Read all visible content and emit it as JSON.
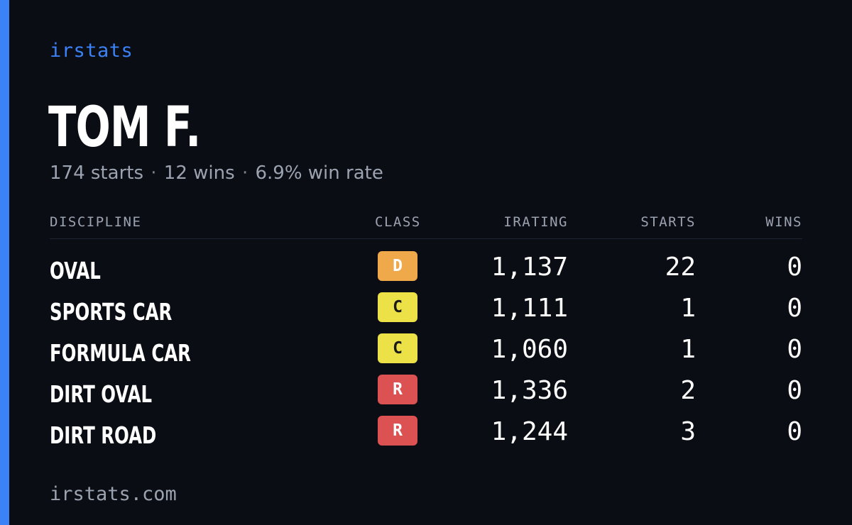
{
  "brand": "irstats",
  "player": {
    "name": "TOM F.",
    "starts_text": "174 starts",
    "wins_text": "12 wins",
    "winrate_text": "6.9% win rate",
    "separator": "·"
  },
  "table": {
    "headers": {
      "discipline": "DISCIPLINE",
      "class": "CLASS",
      "irating": "IRATING",
      "starts": "STARTS",
      "wins": "WINS"
    },
    "rows": [
      {
        "discipline": "OVAL",
        "class": "D",
        "class_color": "#f0a94a",
        "class_text_color": "#ffffff",
        "irating": "1,137",
        "starts": "22",
        "wins": "0"
      },
      {
        "discipline": "SPORTS CAR",
        "class": "C",
        "class_color": "#ece247",
        "class_text_color": "#1a1a1a",
        "irating": "1,111",
        "starts": "1",
        "wins": "0"
      },
      {
        "discipline": "FORMULA CAR",
        "class": "C",
        "class_color": "#ece247",
        "class_text_color": "#1a1a1a",
        "irating": "1,060",
        "starts": "1",
        "wins": "0"
      },
      {
        "discipline": "DIRT OVAL",
        "class": "R",
        "class_color": "#dc5252",
        "class_text_color": "#ffffff",
        "irating": "1,336",
        "starts": "2",
        "wins": "0"
      },
      {
        "discipline": "DIRT ROAD",
        "class": "R",
        "class_color": "#dc5252",
        "class_text_color": "#ffffff",
        "irating": "1,244",
        "starts": "3",
        "wins": "0"
      }
    ]
  },
  "footer": "irstats.com",
  "colors": {
    "accent": "#3b82f6",
    "background": "#0a0d14",
    "muted_text": "#9ca3b0"
  }
}
